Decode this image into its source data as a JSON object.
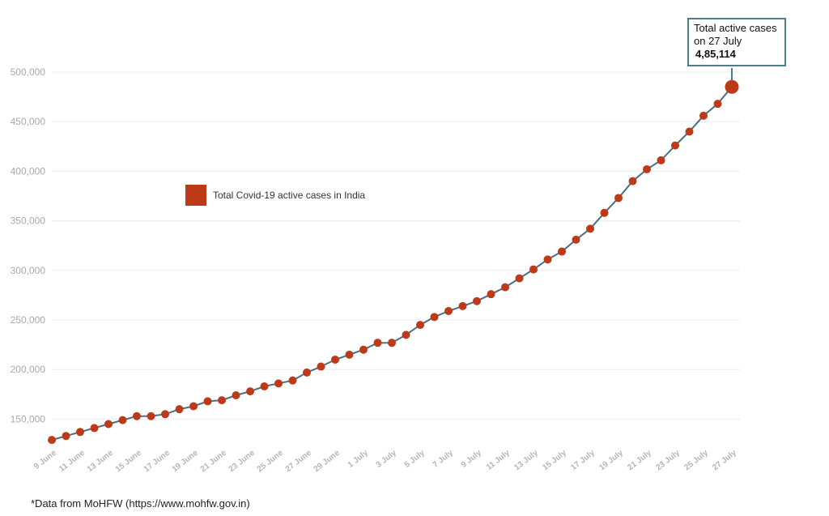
{
  "chart_data": {
    "type": "line",
    "title": "",
    "xlabel": "",
    "ylabel": "",
    "ylim": [
      125000,
      500000
    ],
    "yticks": [
      150000,
      200000,
      250000,
      300000,
      350000,
      400000,
      450000,
      500000
    ],
    "ytick_labels": [
      "150,000",
      "200,000",
      "250,000",
      "300,000",
      "350,000",
      "400,000",
      "450,000",
      "500,000"
    ],
    "grid": true,
    "legend_position": "upper-left inside plot",
    "x": [
      "9 June",
      "10 June",
      "11 June",
      "12 June",
      "13 June",
      "14 June",
      "15 June",
      "16 June",
      "17 June",
      "18 June",
      "19 June",
      "20 June",
      "21 June",
      "22 June",
      "23 June",
      "24 June",
      "25 June",
      "26 June",
      "27 June",
      "28 June",
      "29 June",
      "30 June",
      "1 July",
      "2 July",
      "3 July",
      "4 July",
      "5 July",
      "6 July",
      "7 July",
      "8 July",
      "9 July",
      "10 July",
      "11 July",
      "12 July",
      "13 July",
      "14 July",
      "15 July",
      "16 July",
      "17 July",
      "18 July",
      "19 July",
      "20 July",
      "21 July",
      "22 July",
      "23 July",
      "24 July",
      "25 July",
      "26 July",
      "27 July"
    ],
    "x_tick_labels": [
      "9 June",
      "11 June",
      "13 June",
      "15 June",
      "17 June",
      "19 June",
      "21 June",
      "23 June",
      "25 June",
      "27 June",
      "29 June",
      "1 July",
      "3 July",
      "5 July",
      "7 July",
      "9 July",
      "11 July",
      "13 July",
      "15 July",
      "17 July",
      "19 July",
      "21 July",
      "23 July",
      "25 July",
      "27 July"
    ],
    "series": [
      {
        "name": "Total Covid-19 active cases in India",
        "color": "#bd3a18",
        "line_color": "#4a6f82",
        "values": [
          129000,
          133000,
          137000,
          141000,
          145000,
          149000,
          153000,
          153000,
          155000,
          160000,
          163000,
          168000,
          169000,
          174000,
          178000,
          183000,
          186000,
          189000,
          197000,
          203000,
          210000,
          215000,
          220000,
          227000,
          227000,
          235000,
          245000,
          253000,
          259000,
          264000,
          269000,
          276000,
          283000,
          292000,
          301000,
          311000,
          319000,
          331000,
          342000,
          358000,
          373000,
          390000,
          402000,
          411000,
          426000,
          440000,
          456000,
          468000,
          485114
        ]
      }
    ],
    "annotation": {
      "line1": "Total active cases",
      "line2": "on 27 July",
      "value": "4,85,114"
    }
  },
  "footer": {
    "source": "*Data from MoHFW (https://www.mohfw.gov.in)"
  }
}
